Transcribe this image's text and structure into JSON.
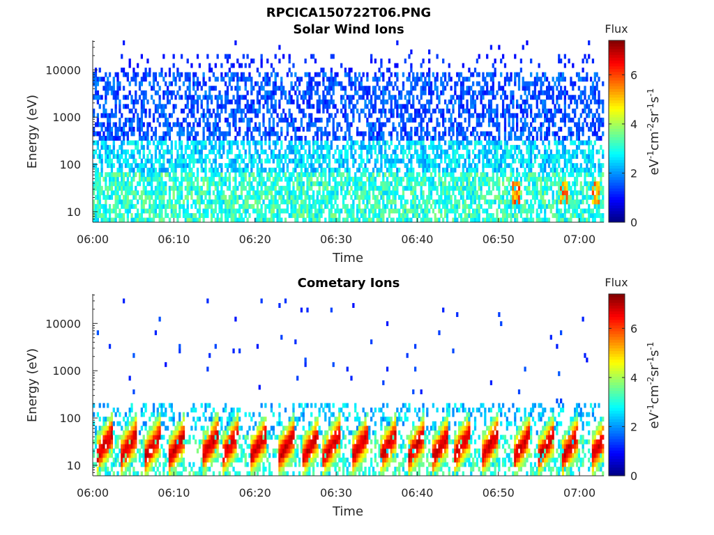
{
  "figure_title": "RPCICA150722T06.PNG",
  "colors": {
    "axis": "#262626",
    "background": "#ffffff"
  },
  "chart_data": [
    {
      "type": "heatmap",
      "title": "Solar Wind Ions",
      "xlabel": "Time",
      "ylabel": "Energy (eV)",
      "y_scale": "log",
      "xlim": [
        "06:00",
        "07:03"
      ],
      "ylim": [
        6,
        42000
      ],
      "x_ticks": [
        "06:00",
        "06:10",
        "06:20",
        "06:30",
        "06:40",
        "06:50",
        "07:00"
      ],
      "y_ticks": [
        "10",
        "100",
        "1000",
        "10000"
      ],
      "colorbar": {
        "title": "Flux",
        "label": "eV-1cm-2sr-1s-1",
        "range": [
          0,
          7.4
        ],
        "ticks": [
          "0",
          "2",
          "4",
          "6"
        ],
        "colormap": "jet"
      },
      "pattern": "broad low-level flux (~1-2) from ~100 eV to ~10 keV; moderate flux (~2.5-4) below ~100 eV; local peaks near 20-40 eV around 06:52, 06:58 and 07:02"
    },
    {
      "type": "heatmap",
      "title": "Cometary Ions",
      "xlabel": "Time",
      "ylabel": "Energy (eV)",
      "y_scale": "log",
      "xlim": [
        "06:00",
        "07:03"
      ],
      "ylim": [
        6,
        42000
      ],
      "x_ticks": [
        "06:00",
        "06:10",
        "06:20",
        "06:30",
        "06:40",
        "06:50",
        "07:00"
      ],
      "y_ticks": [
        "10",
        "100",
        "1000",
        "10000"
      ],
      "colorbar": {
        "title": "Flux",
        "label": "eV-1cm-2sr-1s-1",
        "range": [
          0,
          7.4
        ],
        "ticks": [
          "0",
          "2",
          "4",
          "6"
        ],
        "colormap": "jet"
      },
      "burst_times_min": [
        1,
        4,
        7,
        10,
        14,
        16.5,
        20,
        23.5,
        26.5,
        29,
        32.5,
        36,
        39.5,
        42.5,
        45,
        48.5,
        52.5,
        55.5,
        58.5,
        62
      ],
      "burst_peak_energy_ev": 22,
      "burst_peak_flux": 6.5,
      "pattern": "periodic bursts of high flux (~5-7) at 15-40 eV recurring every ~3 min; sparse low flux points up to ~30 keV"
    }
  ]
}
